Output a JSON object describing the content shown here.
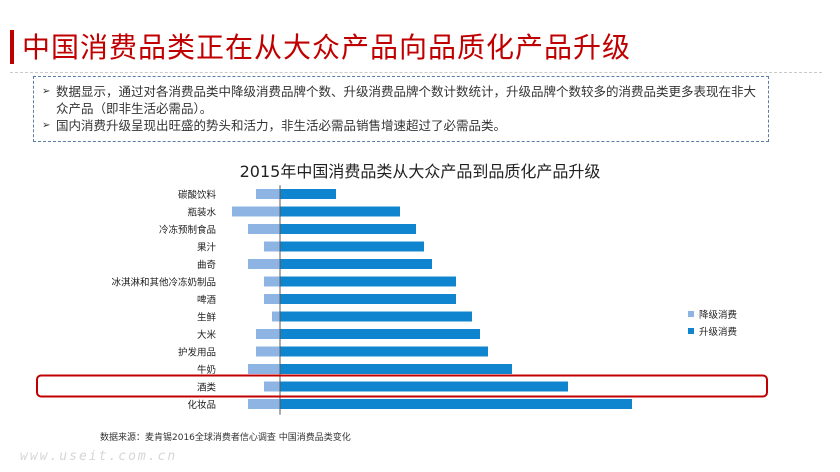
{
  "header": {
    "title": "中国消费品类正在从大众产品向品质化产品升级"
  },
  "notes": [
    "数据显示，通过对各消费品类中降级消费品牌个数、升级消费品牌个数计数统计，升级品牌个数较多的消费品类更多表现在非大众产品（即非生活必需品）。",
    "国内消费升级呈现出旺盛的势头和活力，非生活必需品销售增速超过了必需品类。"
  ],
  "chart_data": {
    "type": "bar",
    "orientation": "horizontal",
    "title": "2015年中国消费品类从大众产品到品质化产品升级",
    "categories": [
      "碳酸饮料",
      "瓶装水",
      "冷冻预制食品",
      "果汁",
      "曲奇",
      "冰淇淋和其他冷冻奶制品",
      "啤酒",
      "生鲜",
      "大米",
      "护发用品",
      "牛奶",
      "酒类",
      "化妆品"
    ],
    "series": [
      {
        "name": "降级消费",
        "color": "#8eb4e3",
        "values": [
          -3,
          -6,
          -4,
          -2,
          -4,
          -2,
          -2,
          -1,
          -3,
          -3,
          -4,
          -2,
          -4
        ]
      },
      {
        "name": "升级消费",
        "color": "#0f85cf",
        "values": [
          7,
          15,
          17,
          18,
          19,
          22,
          22,
          24,
          25,
          26,
          29,
          36,
          44
        ]
      }
    ],
    "highlight_category": "酒类",
    "highlight_color": "#c00000",
    "legend_position": "right",
    "grid": false
  },
  "footer": {
    "source": "数据来源：麦肯锡2016全球消费者信心调查 中国消费品类变化",
    "watermark": "www.useit.com.cn"
  }
}
